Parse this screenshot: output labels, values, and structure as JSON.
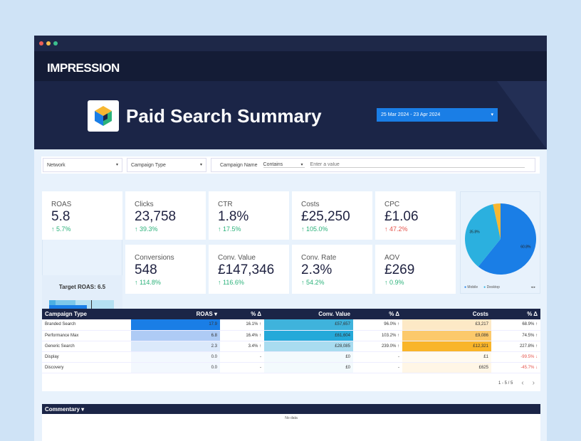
{
  "brand": "IMPRESSION",
  "title": "Paid Search Summary",
  "date_range": "25 Mar 2024 - 23 Apr 2024",
  "filters": {
    "network": "Network",
    "campaign_type": "Campaign Type",
    "campaign_name_label": "Campaign Name",
    "operator": "Contains",
    "value_placeholder": "Enter a value"
  },
  "kpis": [
    {
      "label": "ROAS",
      "value": "5.8",
      "delta": "5.7%",
      "dir": "up"
    },
    {
      "label": "Clicks",
      "value": "23,758",
      "delta": "39.3%",
      "dir": "up"
    },
    {
      "label": "CTR",
      "value": "1.8%",
      "delta": "17.5%",
      "dir": "up"
    },
    {
      "label": "Costs",
      "value": "£25,250",
      "delta": "105.0%",
      "dir": "up"
    },
    {
      "label": "CPC",
      "value": "£1.06",
      "delta": "47.2%",
      "dir": "up-bad"
    },
    {
      "label": "Conversions",
      "value": "548",
      "delta": "114.8%",
      "dir": "up"
    },
    {
      "label": "Conv. Value",
      "value": "£147,346",
      "delta": "116.6%",
      "dir": "up"
    },
    {
      "label": "Conv. Rate",
      "value": "2.3%",
      "delta": "54.2%",
      "dir": "up"
    },
    {
      "label": "AOV",
      "value": "£269",
      "delta": "0.9%",
      "dir": "up"
    }
  ],
  "target": {
    "label": "Target ROAS: 6.5",
    "actual": 5.8,
    "target": 6.5,
    "max": 10,
    "ticks": [
      "0",
      "2",
      "4",
      "6",
      "8",
      "10"
    ]
  },
  "pie": {
    "slices": [
      {
        "name": "Mobile",
        "value": 60.8,
        "label": "60.8%",
        "color": "#1a7ee6"
      },
      {
        "name": "Desktop",
        "value": 35.8,
        "label": "35.8%",
        "color": "#2bb0df"
      },
      {
        "name": "Other",
        "value": 3.4,
        "color": "#f7b731"
      }
    ],
    "legend": [
      "Mobile",
      "Desktop"
    ]
  },
  "table": {
    "headers": [
      "Campaign Type",
      "ROAS ▾",
      "% Δ",
      "Conv. Value",
      "% Δ",
      "Costs",
      "% Δ"
    ],
    "rows": [
      [
        "Branded Search",
        "17.9",
        "16.1% ↑",
        "£57,657",
        "96.0% ↑",
        "£3,217",
        "68.9% ↑"
      ],
      [
        "Performance Max",
        "6.8",
        "16.4% ↑",
        "£61,604",
        "103.2% ↑",
        "£9,086",
        "74.5% ↑"
      ],
      [
        "Generic Search",
        "2.3",
        "3.4% ↑",
        "£28,085",
        "239.0% ↑",
        "£12,321",
        "227.8% ↑"
      ],
      [
        "Display",
        "0.0",
        "-",
        "£0",
        "-",
        "£1",
        "-99.5% ↓"
      ],
      [
        "Discovery",
        "0.0",
        "-",
        "£0",
        "-",
        "£625",
        "-45.7% ↓"
      ]
    ],
    "pagination": "1 - 5 / 5"
  },
  "commentary": {
    "title": "Commentary ▾",
    "empty": "No data"
  }
}
